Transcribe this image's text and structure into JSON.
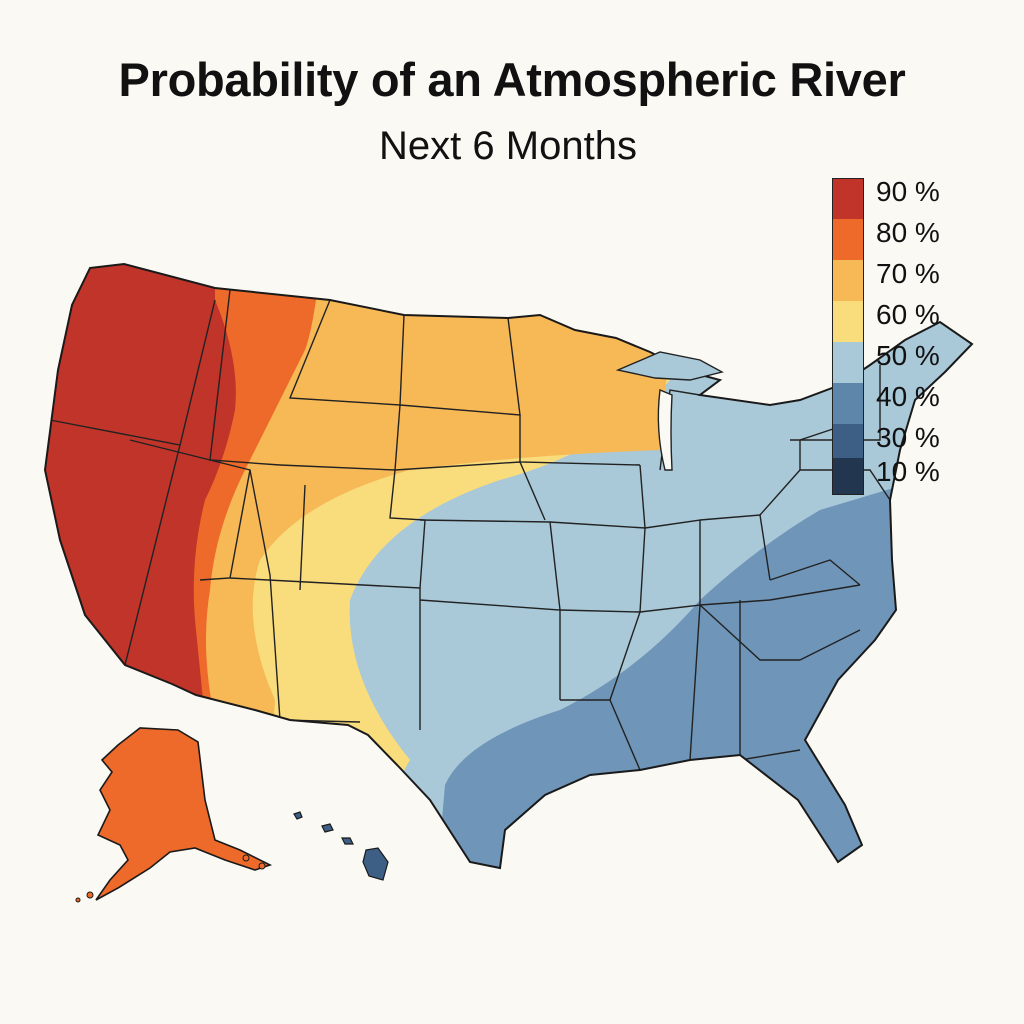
{
  "title": "Probability of an Atmospheric River",
  "subtitle": "Next 6 Months",
  "legend": [
    {
      "label": "90 %",
      "value": 90,
      "color": "#c0342a"
    },
    {
      "label": "80 %",
      "value": 80,
      "color": "#ee6a2a"
    },
    {
      "label": "70 %",
      "value": 70,
      "color": "#f6b956"
    },
    {
      "label": "60 %",
      "value": 60,
      "color": "#f9dc7c"
    },
    {
      "label": "50 %",
      "value": 50,
      "color": "#a9c8d8"
    },
    {
      "label": "40 %",
      "value": 40,
      "color": "#5d86aa"
    },
    {
      "label": "30 %",
      "value": 30,
      "color": "#3d5f85"
    },
    {
      "label": "10 %",
      "value": 10,
      "color": "#233650"
    }
  ],
  "regions": [
    {
      "name": "Pacific Northwest & California",
      "level": 90
    },
    {
      "name": "Northern Rockies",
      "level": 80
    },
    {
      "name": "Alaska",
      "level": 80
    },
    {
      "name": "Northern Plains & Upper Midwest",
      "level": 70
    },
    {
      "name": "Southwest & Central Plains",
      "level": 60
    },
    {
      "name": "Midwest, Ohio Valley & Northeast",
      "level": 50
    },
    {
      "name": "Gulf Coast & Southeast",
      "level": 40
    },
    {
      "name": "Hawaii",
      "level": 30
    }
  ]
}
